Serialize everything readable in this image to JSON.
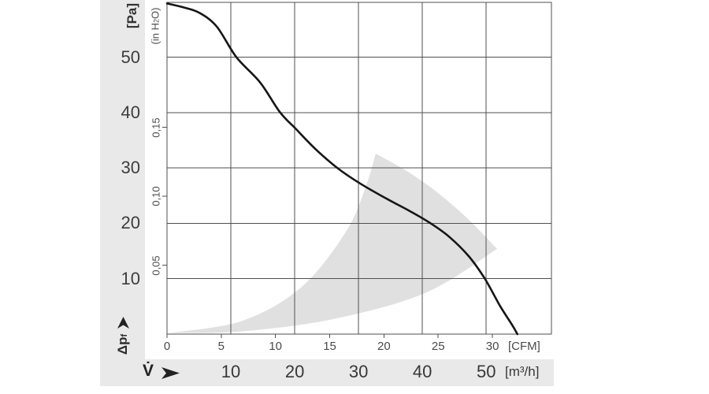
{
  "chart_data": {
    "type": "line",
    "description": "fan air-performance curve: static pressure vs volumetric flow",
    "y_axis_pa": {
      "unit": "[Pa]",
      "title_prefix": "Δp",
      "title_sub": "f",
      "tick_labels": [
        "10",
        "20",
        "30",
        "40",
        "50"
      ],
      "tick_values": [
        10,
        20,
        30,
        40,
        50
      ],
      "range_pa": [
        0,
        59.9
      ],
      "grid": true
    },
    "y_axis_inh2o": {
      "unit_prefix": "(in H",
      "unit_sub": "2",
      "unit_suffix": "O)",
      "tick_labels": [
        "0,05",
        "0,10",
        "0,15"
      ],
      "tick_values": [
        0.05,
        0.1,
        0.15
      ],
      "pa_per_inh2o": 248.84
    },
    "x_axis_cfm": {
      "unit": "[CFM]",
      "tick_labels": [
        "0",
        "5",
        "10",
        "15",
        "20",
        "25",
        "30"
      ],
      "tick_values": [
        0,
        5,
        10,
        15,
        20,
        25,
        30
      ],
      "range_cfm": [
        0,
        35.44
      ]
    },
    "x_axis_m3h": {
      "unit": "[m³/h]",
      "title": "V̇",
      "tick_labels": [
        "10",
        "20",
        "30",
        "40",
        "50"
      ],
      "tick_values": [
        10,
        20,
        30,
        40,
        50
      ],
      "cfm_per_m3h": 0.58858,
      "grid": true
    },
    "series": [
      {
        "name": "fan-curve",
        "points_cfm_pa": [
          [
            0,
            59.7
          ],
          [
            1.5,
            59.0
          ],
          [
            3,
            58.0
          ],
          [
            4.6,
            55.5
          ],
          [
            6.4,
            50.0
          ],
          [
            8.6,
            45.4
          ],
          [
            10.4,
            40.1
          ],
          [
            11.9,
            37.0
          ],
          [
            13.7,
            33.4
          ],
          [
            15.7,
            30.0
          ],
          [
            17.8,
            27.2
          ],
          [
            20.2,
            24.5
          ],
          [
            22.4,
            22.2
          ],
          [
            24.3,
            20.0
          ],
          [
            26.0,
            17.6
          ],
          [
            27.8,
            14.1
          ],
          [
            29.3,
            10.0
          ],
          [
            30.7,
            5.1
          ],
          [
            31.8,
            1.7
          ],
          [
            32.3,
            0
          ]
        ]
      }
    ],
    "operating_region_cfm_pa": {
      "left_boundary": [
        [
          0.15,
          0.2
        ],
        [
          6.95,
          2.4
        ],
        [
          12.4,
          8.5
        ],
        [
          16.5,
          18.5
        ],
        [
          18.3,
          26.5
        ],
        [
          19.24,
          32.6
        ]
      ],
      "outer_boundary": [
        [
          19.24,
          32.6
        ],
        [
          22.3,
          29.2
        ],
        [
          25.1,
          25.3
        ],
        [
          27.85,
          20.6
        ],
        [
          30.43,
          15.4
        ]
      ],
      "bottom_boundary": [
        [
          30.43,
          15.4
        ],
        [
          23.9,
          7.5
        ],
        [
          15.4,
          2.75
        ],
        [
          6.88,
          0.5
        ],
        [
          0.15,
          0.2
        ]
      ]
    },
    "colors": {
      "curve": "#161616",
      "grid": "#4f4f4f",
      "region_fill": "#e0e0e0",
      "band_fill": "#e9e9e9",
      "text": "#3d3d3d"
    }
  }
}
